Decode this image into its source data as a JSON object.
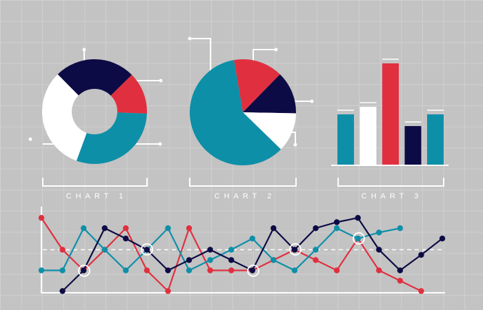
{
  "chart_data": [
    {
      "type": "donut",
      "title": "CHART 1",
      "values": [
        25,
        13,
        30,
        32
      ],
      "colors": [
        "#0d0b45",
        "#e0303f",
        "#0e8fa8",
        "#ffffff"
      ]
    },
    {
      "type": "pie",
      "title": "CHART 2",
      "values": [
        15,
        13,
        12,
        60
      ],
      "colors": [
        "#e0303f",
        "#0d0b45",
        "#ffffff",
        "#0e8fa8"
      ]
    },
    {
      "type": "bar",
      "title": "CHART 3",
      "values": [
        74,
        85,
        148,
        57,
        74
      ],
      "colors": [
        "#0e8fa8",
        "#ffffff",
        "#e0303f",
        "#0d0b45",
        "#0e8fa8"
      ],
      "ylim": [
        0,
        150
      ]
    },
    {
      "type": "line",
      "x": [
        0,
        1,
        2,
        3,
        4,
        5,
        6,
        7,
        8,
        9,
        10,
        11,
        12,
        13,
        14,
        15,
        16,
        17,
        18,
        19
      ],
      "xlim": [
        0,
        19
      ],
      "ylim": [
        0,
        100
      ],
      "threshold": 50,
      "series": [
        {
          "color": "#e0303f",
          "values": [
            87,
            50,
            26,
            50,
            75,
            26,
            2,
            75,
            26,
            26,
            26,
            38,
            50,
            38,
            26,
            63,
            26,
            14,
            2,
            null
          ]
        },
        {
          "color": "#0e8fa8",
          "values": [
            26,
            26,
            75,
            50,
            26,
            50,
            75,
            26,
            38,
            50,
            63,
            38,
            26,
            50,
            75,
            63,
            70,
            75,
            null,
            null
          ]
        },
        {
          "color": "#0d0b45",
          "values": [
            null,
            2,
            26,
            75,
            63,
            50,
            26,
            38,
            50,
            38,
            26,
            75,
            50,
            75,
            82,
            87,
            50,
            26,
            44,
            63
          ]
        }
      ]
    }
  ]
}
